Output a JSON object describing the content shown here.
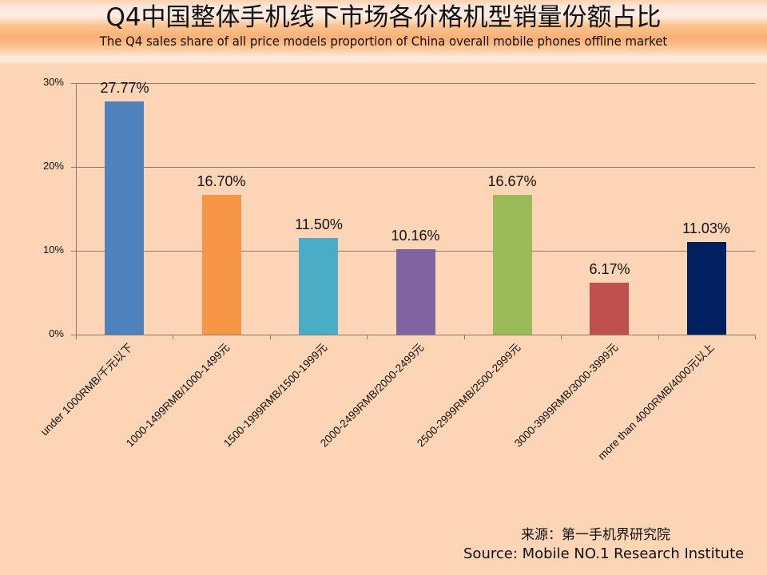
{
  "header": {
    "title": "Q4中国整体手机线下市场各价格机型销量份额占比",
    "subtitle": "The Q4 sales share of all price models proportion of China overall mobile phones offline market"
  },
  "footer": {
    "source_cn": "来源：第一手机界研究院",
    "source_en": "Source: Mobile NO.1 Research Institute"
  },
  "chart_data": {
    "type": "bar",
    "title": "Q4中国整体手机线下市场各价格机型销量份额占比",
    "subtitle": "The Q4 sales share of all price models proportion of China overall mobile phones offline market",
    "xlabel": "",
    "ylabel": "",
    "ylim": [
      0,
      30
    ],
    "yticks": [
      "0%",
      "10%",
      "20%",
      "30%"
    ],
    "grid": true,
    "legend": null,
    "categories": [
      "under 1000RMB/千元以下",
      "1000-1499RMB/1000-1499元",
      "1500-1999RMB/1500-1999元",
      "2000-2499RMB/2000-2499元",
      "2500-2999RMB/2500-2999元",
      "3000-3999RMB/3000-3999元",
      "more than 4000RMB/4000元以上"
    ],
    "values": [
      27.77,
      16.7,
      11.5,
      10.16,
      16.67,
      6.17,
      11.03
    ],
    "value_labels": [
      "27.77%",
      "16.70%",
      "11.50%",
      "10.16%",
      "16.67%",
      "6.17%",
      "11.03%"
    ],
    "colors": [
      "#4F81BD",
      "#F79646",
      "#4BACC6",
      "#8064A2",
      "#9BBB59",
      "#C0504D",
      "#002060"
    ],
    "annotations": [
      "来源：第一手机界研究院",
      "Source: Mobile NO.1 Research Institute"
    ]
  }
}
